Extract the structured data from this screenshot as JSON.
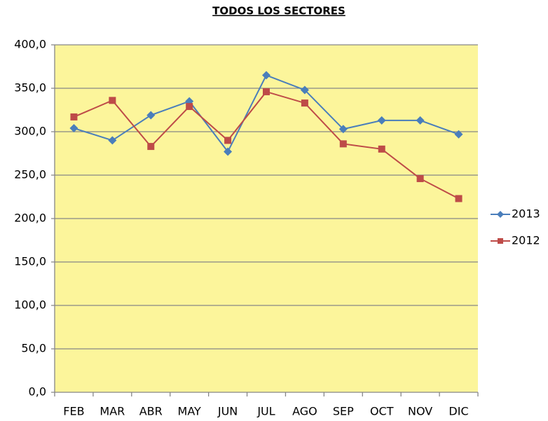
{
  "chart_data": {
    "type": "line",
    "title": "TODOS LOS SECTORES",
    "categories": [
      "FEB",
      "MAR",
      "ABR",
      "MAY",
      "JUN",
      "JUL",
      "AGO",
      "SEP",
      "OCT",
      "NOV",
      "DIC"
    ],
    "series": [
      {
        "name": "2013",
        "color": "#4a7ebb",
        "marker": "diamond",
        "values": [
          304,
          290,
          319,
          335,
          277,
          365,
          348,
          303,
          313,
          313,
          297
        ]
      },
      {
        "name": "2012",
        "color": "#be4b48",
        "marker": "square",
        "values": [
          317,
          336,
          283,
          329,
          290,
          346,
          333,
          286,
          280,
          246,
          223
        ]
      }
    ],
    "ylim": [
      0,
      400
    ],
    "yticks": [
      {
        "value": 0,
        "label": "0,0"
      },
      {
        "value": 50,
        "label": "50,0"
      },
      {
        "value": 100,
        "label": "100,0"
      },
      {
        "value": 150,
        "label": "150,0"
      },
      {
        "value": 200,
        "label": "200,0"
      },
      {
        "value": 250,
        "label": "250,0"
      },
      {
        "value": 300,
        "label": "300,0"
      },
      {
        "value": 350,
        "label": "350,0"
      },
      {
        "value": 400,
        "label": "400,0"
      }
    ],
    "grid": true,
    "plot_background": "#fcf59b",
    "legend": "right"
  }
}
